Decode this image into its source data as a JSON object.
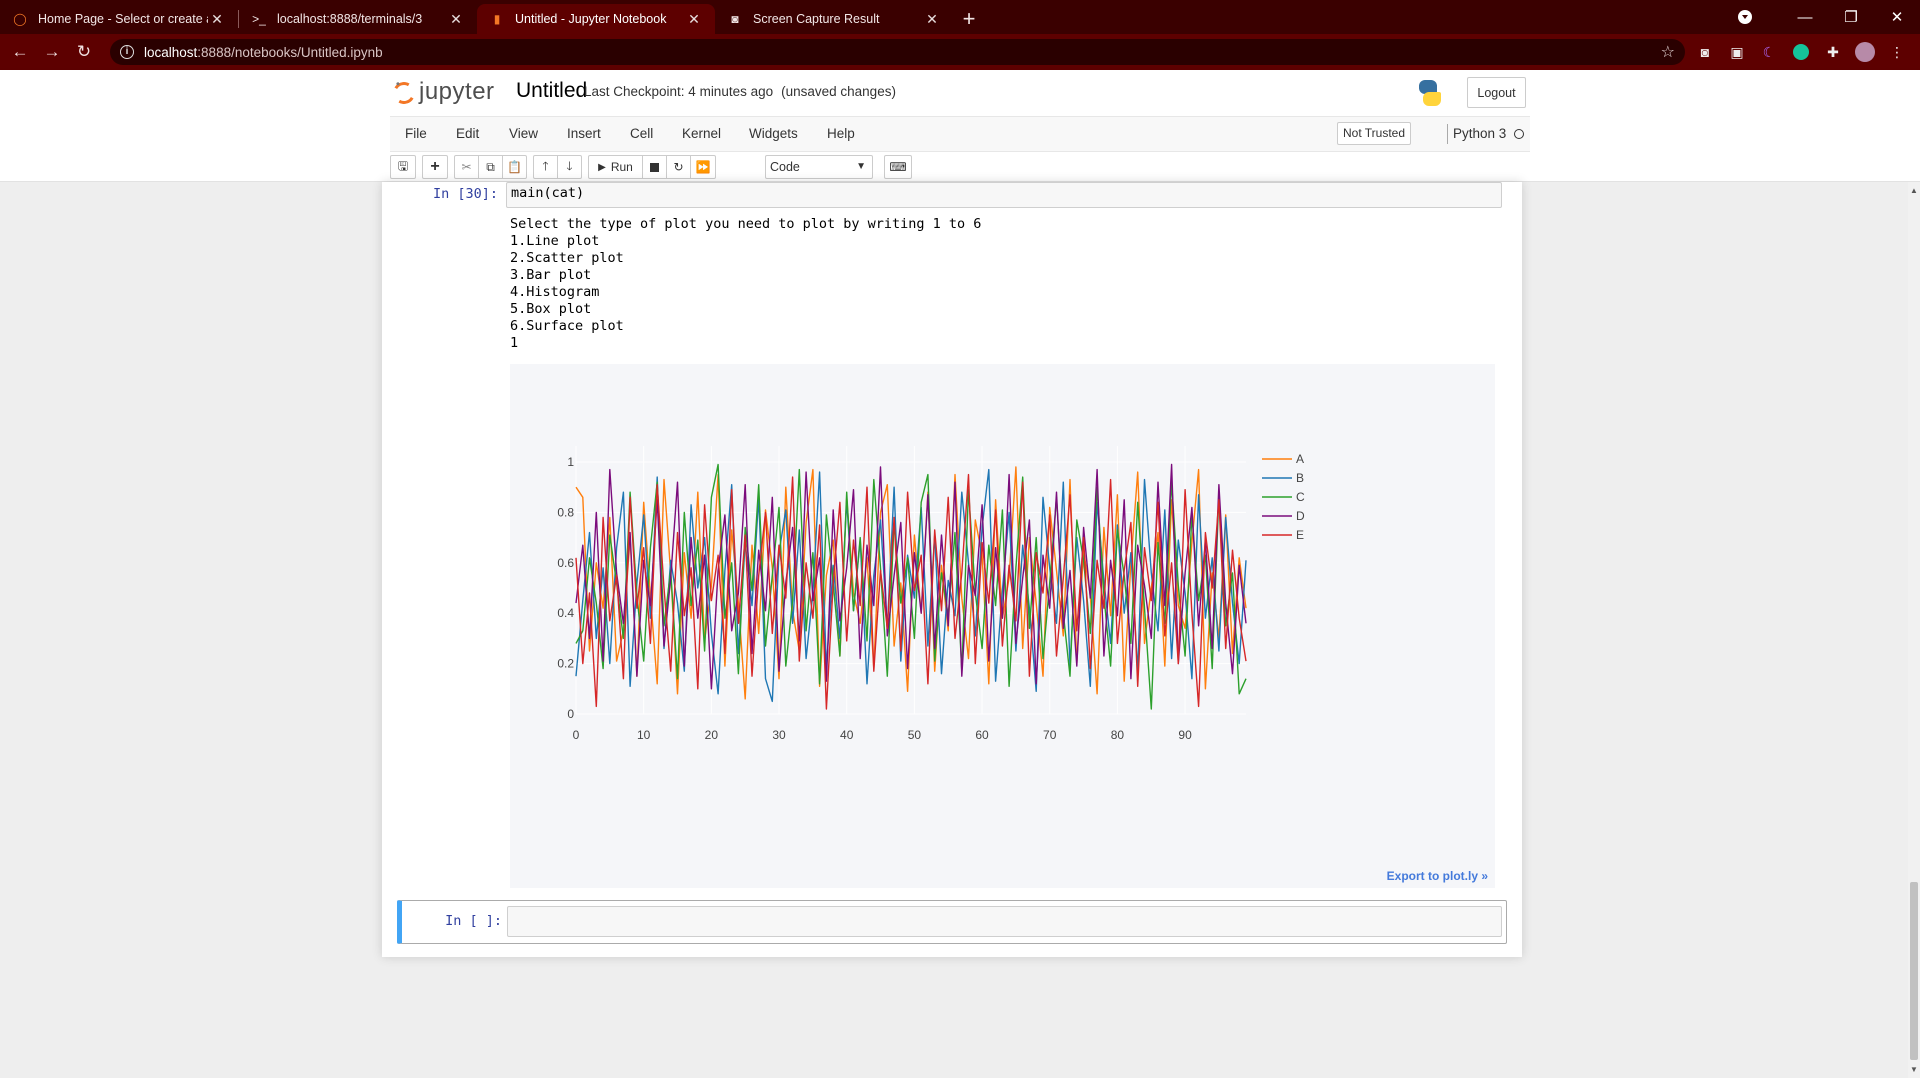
{
  "browser": {
    "tabs": [
      {
        "label": "Home Page - Select or create a n",
        "icon": "jupyter-icon"
      },
      {
        "label": "localhost:8888/terminals/3",
        "icon": "terminal-icon"
      },
      {
        "label": "Untitled - Jupyter Notebook",
        "icon": "notebook-icon",
        "active": true
      },
      {
        "label": "Screen Capture Result",
        "icon": "camera-icon"
      }
    ],
    "url_host": "localhost",
    "url_path": ":8888/notebooks/Untitled.ipynb"
  },
  "header": {
    "logo_text": "jupyter",
    "notebook_title": "Untitled",
    "checkpoint": "Last Checkpoint: 4 minutes ago",
    "unsaved": "(unsaved changes)",
    "logout_label": "Logout"
  },
  "menubar": {
    "items": [
      "File",
      "Edit",
      "View",
      "Insert",
      "Cell",
      "Kernel",
      "Widgets",
      "Help"
    ],
    "trust_label": "Not Trusted",
    "kernel_name": "Python 3"
  },
  "toolbar": {
    "run_label": "Run",
    "cell_type": "Code"
  },
  "cells": {
    "cell1_prompt": "In [30]:",
    "cell1_code": "main(cat)",
    "cell1_output": "Select the type of plot you need to plot by writing 1 to 6\n1.Line plot\n2.Scatter plot\n3.Bar plot\n4.Histogram\n5.Box plot\n6.Surface plot\n1",
    "cell2_prompt": "In [ ]:",
    "export_label": "Export to plot.ly »"
  },
  "chart_data": {
    "type": "line",
    "xlim": [
      0,
      99
    ],
    "ylim": [
      0,
      1
    ],
    "x_ticks": [
      0,
      10,
      20,
      30,
      40,
      50,
      60,
      70,
      80,
      90
    ],
    "y_ticks": [
      0,
      0.2,
      0.4,
      0.6,
      0.8,
      1
    ],
    "y_tick_labels": [
      "0",
      "0.2",
      "0.4",
      "0.6",
      "0.8",
      "1"
    ],
    "legend_position": "top-right",
    "grid": true,
    "series": [
      {
        "name": "A",
        "color": "#ff7f0e",
        "values": [
          0.9,
          0.86,
          0.25,
          0.6,
          0.42,
          0.78,
          0.21,
          0.33,
          0.7,
          0.15,
          0.84,
          0.47,
          0.12,
          0.93,
          0.56,
          0.08,
          0.64,
          0.38,
          0.88,
          0.29,
          0.51,
          0.95,
          0.19,
          0.73,
          0.44,
          0.06,
          0.67,
          0.32,
          0.81,
          0.58,
          0.14,
          0.9,
          0.41,
          0.25,
          0.76,
          0.97,
          0.11,
          0.55,
          0.69,
          0.23,
          0.86,
          0.48,
          0.36,
          0.62,
          0.18,
          0.8,
          0.91,
          0.27,
          0.52,
          0.09,
          0.71,
          0.4,
          0.88,
          0.17,
          0.59,
          0.33,
          0.95,
          0.46,
          0.22,
          0.77,
          0.63,
          0.12,
          0.85,
          0.38,
          0.54,
          0.98,
          0.26,
          0.7,
          0.44,
          0.15,
          0.82,
          0.57,
          0.31,
          0.93,
          0.2,
          0.65,
          0.47,
          0.08,
          0.74,
          0.39,
          0.87,
          0.13,
          0.6,
          0.96,
          0.28,
          0.5,
          0.72,
          0.19,
          0.85,
          0.43,
          0.34,
          0.68,
          0.97,
          0.1,
          0.56,
          0.3,
          0.79,
          0.24,
          0.62,
          0.42
        ]
      },
      {
        "name": "B",
        "color": "#1f77b4",
        "values": [
          0.15,
          0.45,
          0.72,
          0.3,
          0.58,
          0.2,
          0.66,
          0.88,
          0.11,
          0.52,
          0.79,
          0.38,
          0.94,
          0.26,
          0.61,
          0.44,
          0.17,
          0.83,
          0.5,
          0.7,
          0.32,
          0.08,
          0.57,
          0.91,
          0.24,
          0.68,
          0.43,
          0.86,
          0.14,
          0.05,
          0.64,
          0.81,
          0.36,
          0.73,
          0.22,
          0.48,
          0.96,
          0.18,
          0.59,
          0.3,
          0.85,
          0.41,
          0.69,
          0.12,
          0.55,
          0.77,
          0.34,
          0.9,
          0.21,
          0.63,
          0.46,
          0.82,
          0.27,
          0.71,
          0.16,
          0.53,
          0.39,
          0.88,
          0.6,
          0.31,
          0.74,
          0.97,
          0.13,
          0.49,
          0.8,
          0.25,
          0.67,
          0.42,
          0.09,
          0.86,
          0.58,
          0.36,
          0.92,
          0.19,
          0.7,
          0.45,
          0.11,
          0.84,
          0.53,
          0.28,
          0.75,
          0.4,
          0.64,
          0.17,
          0.93,
          0.56,
          0.33,
          0.81,
          0.22,
          0.69,
          0.48,
          0.14,
          0.87,
          0.38,
          0.62,
          0.25,
          0.78,
          0.44,
          0.2,
          0.61
        ]
      },
      {
        "name": "C",
        "color": "#2ca02c",
        "values": [
          0.28,
          0.33,
          0.62,
          0.44,
          0.18,
          0.71,
          0.52,
          0.3,
          0.88,
          0.47,
          0.21,
          0.66,
          0.92,
          0.35,
          0.57,
          0.14,
          0.8,
          0.43,
          0.69,
          0.25,
          0.86,
          0.99,
          0.38,
          0.6,
          0.16,
          0.74,
          0.49,
          0.91,
          0.27,
          0.55,
          0.82,
          0.19,
          0.45,
          0.97,
          0.33,
          0.64,
          0.12,
          0.79,
          0.52,
          0.23,
          0.88,
          0.41,
          0.7,
          0.29,
          0.93,
          0.58,
          0.15,
          0.76,
          0.44,
          0.62,
          0.3,
          0.84,
          0.95,
          0.21,
          0.56,
          0.39,
          0.72,
          0.17,
          0.89,
          0.48,
          0.26,
          0.67,
          0.43,
          0.81,
          0.11,
          0.58,
          0.94,
          0.34,
          0.7,
          0.22,
          0.52,
          0.86,
          0.4,
          0.15,
          0.77,
          0.61,
          0.32,
          0.9,
          0.47,
          0.19,
          0.73,
          0.55,
          0.28,
          0.84,
          0.42,
          0.02,
          0.68,
          0.36,
          0.92,
          0.51,
          0.23,
          0.79,
          0.45,
          0.63,
          0.18,
          0.87,
          0.35,
          0.56,
          0.08,
          0.14
        ]
      },
      {
        "name": "D",
        "color": "#7b0c7c",
        "values": [
          0.44,
          0.67,
          0.3,
          0.8,
          0.21,
          0.97,
          0.56,
          0.36,
          0.72,
          0.15,
          0.61,
          0.43,
          0.85,
          0.27,
          0.54,
          0.92,
          0.19,
          0.7,
          0.38,
          0.63,
          0.1,
          0.57,
          0.79,
          0.33,
          0.48,
          0.91,
          0.24,
          0.65,
          0.41,
          0.86,
          0.17,
          0.52,
          0.74,
          0.29,
          0.96,
          0.45,
          0.62,
          0.13,
          0.81,
          0.37,
          0.58,
          0.89,
          0.22,
          0.67,
          0.43,
          0.98,
          0.31,
          0.55,
          0.76,
          0.18,
          0.64,
          0.4,
          0.87,
          0.26,
          0.71,
          0.35,
          0.92,
          0.15,
          0.59,
          0.47,
          0.83,
          0.21,
          0.66,
          0.38,
          0.95,
          0.28,
          0.54,
          0.77,
          0.12,
          0.63,
          0.42,
          0.88,
          0.34,
          0.57,
          0.19,
          0.74,
          0.46,
          0.97,
          0.23,
          0.61,
          0.39,
          0.85,
          0.14,
          0.67,
          0.51,
          0.3,
          0.92,
          0.43,
          0.99,
          0.2,
          0.56,
          0.82,
          0.35,
          0.69,
          0.26,
          0.91,
          0.44,
          0.16,
          0.59,
          0.36
        ]
      },
      {
        "name": "E",
        "color": "#d62728",
        "values": [
          0.62,
          0.2,
          0.48,
          0.03,
          0.78,
          0.37,
          0.55,
          0.14,
          0.86,
          0.42,
          0.66,
          0.28,
          0.91,
          0.5,
          0.17,
          0.72,
          0.39,
          0.58,
          0.1,
          0.83,
          0.45,
          0.63,
          0.24,
          0.89,
          0.36,
          0.71,
          0.15,
          0.55,
          0.8,
          0.32,
          0.67,
          0.46,
          0.94,
          0.21,
          0.6,
          0.38,
          0.75,
          0.02,
          0.52,
          0.84,
          0.29,
          0.69,
          0.43,
          0.9,
          0.17,
          0.57,
          0.34,
          0.78,
          0.25,
          0.88,
          0.49,
          0.63,
          0.12,
          0.73,
          0.41,
          0.86,
          0.3,
          0.56,
          0.95,
          0.2,
          0.68,
          0.44,
          0.81,
          0.27,
          0.59,
          0.37,
          0.92,
          0.15,
          0.64,
          0.48,
          0.79,
          0.23,
          0.54,
          0.87,
          0.33,
          0.7,
          0.18,
          0.61,
          0.42,
          0.93,
          0.28,
          0.57,
          0.76,
          0.11,
          0.66,
          0.45,
          0.84,
          0.31,
          0.6,
          0.2,
          0.89,
          0.4,
          0.03,
          0.72,
          0.5,
          0.85,
          0.26,
          0.65,
          0.38,
          0.21
        ]
      }
    ]
  },
  "colors": {
    "chrome_dark": "#3a0000",
    "chrome_active": "#5d0000",
    "jupyter_orange": "#f37726",
    "prompt_blue": "#303f9f",
    "selected_cell_blue": "#42a5f5"
  }
}
